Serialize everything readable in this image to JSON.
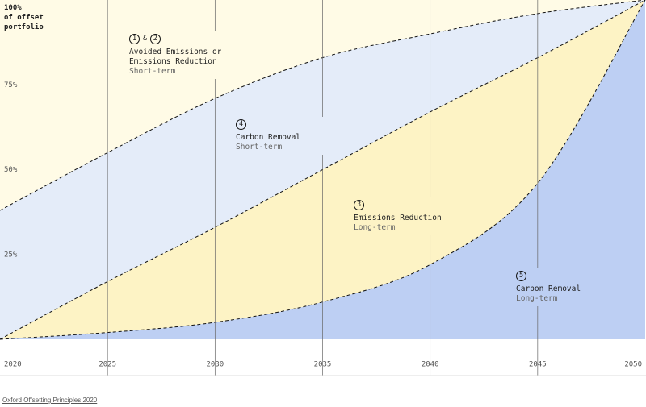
{
  "chart_data": {
    "type": "stacked_area",
    "y_label": "of offset portfolio",
    "source": "Oxford Offsetting Principles 2020",
    "x": [
      2020,
      2025,
      2030,
      2035,
      2040,
      2045,
      2050
    ],
    "xlim": [
      2020,
      2050
    ],
    "xticks": [
      2020,
      2025,
      2030,
      2035,
      2040,
      2045,
      2050
    ],
    "ylim": [
      0,
      100
    ],
    "yticks": [
      {
        "value": 25,
        "label": "25%"
      },
      {
        "value": 50,
        "label": "50%"
      },
      {
        "value": 75,
        "label": "75%"
      },
      {
        "value": 100,
        "label": "100%"
      }
    ],
    "grid": true,
    "series": [
      {
        "name": "Carbon Removal",
        "term": "Long-term",
        "badges": [
          "5"
        ],
        "color": "#bdcff3",
        "values": [
          0,
          2,
          5,
          11,
          22,
          46,
          100
        ]
      },
      {
        "name": "Emissions Reduction",
        "term": "Long-term",
        "badges": [
          "3"
        ],
        "color": "#fdf3c5",
        "values": [
          0,
          15,
          28,
          39,
          45,
          37,
          0
        ]
      },
      {
        "name": "Carbon Removal",
        "term": "Short-term",
        "badges": [
          "4"
        ],
        "color": "#e4ecf9",
        "values": [
          38,
          38,
          38,
          33,
          23,
          13,
          0
        ]
      },
      {
        "name": "Avoided Emissions or Emissions Reduction",
        "term": "Short-term",
        "badges": [
          "1",
          "2"
        ],
        "badge_separator": "&",
        "color": "#fffbe6",
        "values": [
          62,
          45,
          29,
          17,
          10,
          4,
          0
        ]
      }
    ]
  }
}
